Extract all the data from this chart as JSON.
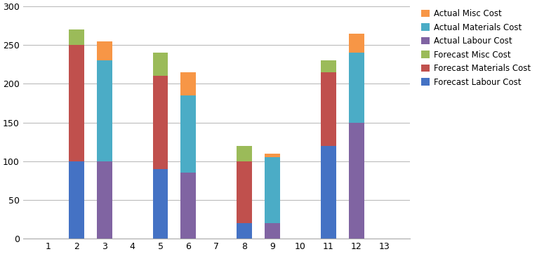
{
  "categories": [
    1,
    2,
    3,
    4,
    5,
    6,
    7,
    8,
    9,
    10,
    11,
    12,
    13
  ],
  "forecast_labour": [
    0,
    100,
    0,
    0,
    90,
    0,
    0,
    20,
    0,
    0,
    120,
    0,
    0
  ],
  "forecast_materials": [
    0,
    150,
    0,
    0,
    120,
    0,
    0,
    80,
    0,
    0,
    95,
    0,
    0
  ],
  "forecast_misc": [
    0,
    20,
    0,
    0,
    30,
    0,
    0,
    20,
    0,
    0,
    15,
    0,
    0
  ],
  "actual_labour": [
    0,
    0,
    100,
    0,
    0,
    85,
    0,
    0,
    20,
    0,
    0,
    150,
    0
  ],
  "actual_materials": [
    0,
    0,
    130,
    0,
    0,
    100,
    0,
    0,
    85,
    0,
    0,
    90,
    0
  ],
  "actual_misc": [
    0,
    0,
    25,
    0,
    0,
    30,
    0,
    0,
    5,
    0,
    0,
    25,
    0
  ],
  "colors": {
    "forecast_labour": "#4472C4",
    "forecast_materials": "#C0504D",
    "forecast_misc": "#9BBB59",
    "actual_labour": "#8064A2",
    "actual_materials": "#4BACC6",
    "actual_misc": "#F79646"
  },
  "legend_labels": {
    "actual_misc": "Actual Misc Cost",
    "actual_materials": "Actual Materials Cost",
    "actual_labour": "Actual Labour Cost",
    "forecast_misc": "Forecast Misc Cost",
    "forecast_materials": "Forecast Materials Cost",
    "forecast_labour": "Forecast Labour Cost"
  },
  "ylim": [
    0,
    300
  ],
  "yticks": [
    0,
    50,
    100,
    150,
    200,
    250,
    300
  ],
  "xticks": [
    1,
    2,
    3,
    4,
    5,
    6,
    7,
    8,
    9,
    10,
    11,
    12,
    13
  ],
  "bar_width": 0.55,
  "background_color": "#FFFFFF"
}
